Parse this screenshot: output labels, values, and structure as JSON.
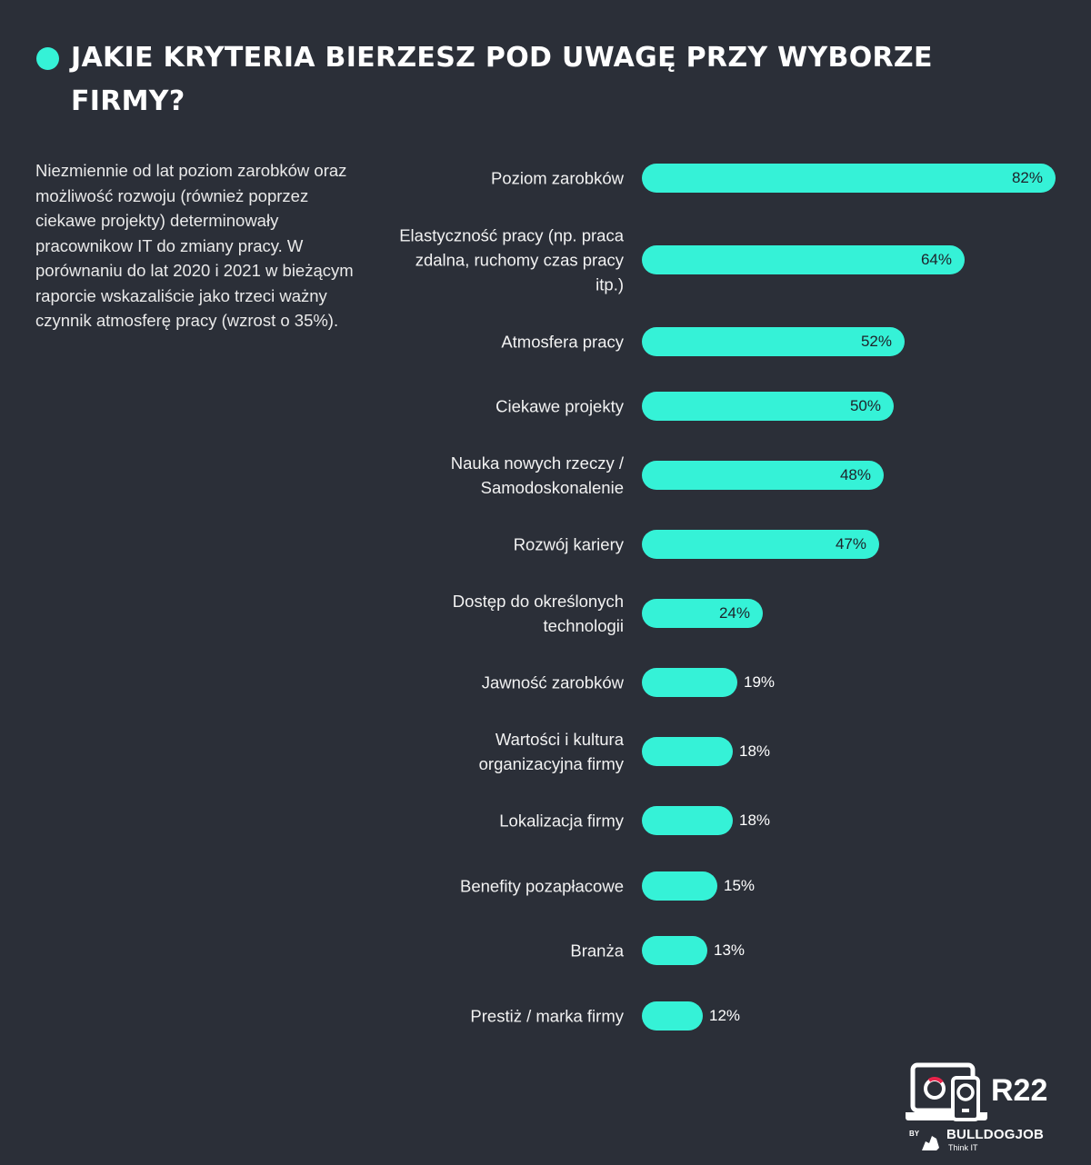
{
  "page": {
    "title": "JAKIE KRYTERIA BIERZESZ POD UWAGĘ PRZY WYBORZE FIRMY?",
    "description": "Niezmiennie od lat poziom zarobków oraz możliwość rozwoju (również poprzez ciekawe projekty) determinowały pracownikow IT do zmiany pracy. W porównaniu do lat 2020 i 2021 w bieżącym raporcie wskazaliście jako trzeci ważny czynnik atmosferę pracy (wzrost o 35%).",
    "accent_color": "#35f2d7",
    "background_color": "#2b2f38"
  },
  "branding": {
    "report": "R22",
    "by": "BY",
    "brand": "BULLDOGJOB",
    "tagline": "Think IT",
    "logo_icon": "laptop-phone-icon",
    "mascot_icon": "bulldog-icon"
  },
  "chart_data": {
    "type": "bar",
    "orientation": "horizontal",
    "categories": [
      "Poziom zarobków",
      "Elastyczność pracy (np. praca zdalna, ruchomy czas pracy itp.)",
      "Atmosfera pracy",
      "Ciekawe projekty",
      "Nauka nowych rzeczy / Samodoskonalenie",
      "Rozwój kariery",
      "Dostęp do określonych technologii",
      "Jawność zarobków",
      "Wartości i kultura organizacyjna firmy",
      "Lokalizacja firmy",
      "Benefity pozapłacowe",
      "Branża",
      "Prestiż / marka firmy"
    ],
    "values": [
      82,
      64,
      52,
      50,
      48,
      47,
      24,
      19,
      18,
      18,
      15,
      13,
      12
    ],
    "value_labels": [
      "82%",
      "64%",
      "52%",
      "50%",
      "48%",
      "47%",
      "24%",
      "19%",
      "18%",
      "18%",
      "15%",
      "13%",
      "12%"
    ],
    "unit": "%",
    "xlim": [
      0,
      82
    ],
    "bar_color": "#35f2d7",
    "grid": false,
    "legend": "none"
  }
}
